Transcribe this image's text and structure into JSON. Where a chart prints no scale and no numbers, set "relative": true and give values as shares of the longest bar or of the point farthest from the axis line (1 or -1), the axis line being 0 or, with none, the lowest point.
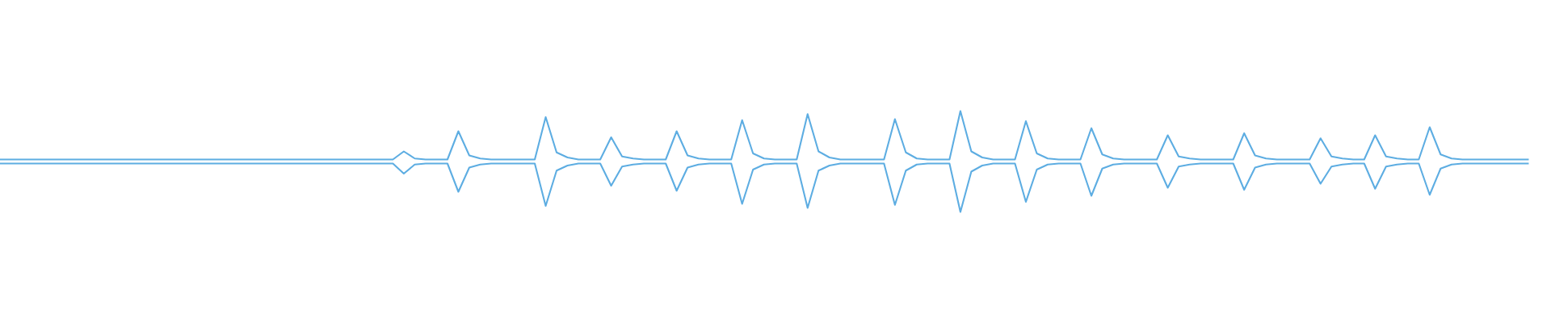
{
  "chart_data": {
    "type": "line",
    "relative": true,
    "categories": [
      null,
      null,
      null,
      null,
      null,
      null,
      null,
      null,
      null,
      null,
      null,
      null,
      null,
      null,
      null,
      null,
      null,
      null,
      null,
      null,
      null,
      null,
      null,
      null,
      null,
      null,
      null,
      null,
      null,
      null,
      null,
      null,
      null,
      null,
      null,
      null,
      null,
      null,
      null,
      null,
      null,
      null,
      null,
      null,
      null,
      null,
      null,
      null,
      null,
      null,
      null,
      null,
      null,
      null,
      null,
      null,
      null,
      null,
      null,
      null,
      null,
      null,
      null,
      null,
      null,
      null,
      null,
      null,
      null,
      null,
      null,
      null,
      null,
      null,
      null,
      null,
      null,
      null,
      null,
      null,
      null,
      null,
      null,
      null,
      null,
      null,
      null,
      null,
      null,
      null,
      null,
      null,
      null,
      null,
      null,
      null,
      null,
      null,
      null,
      null,
      null,
      null,
      null,
      null,
      null,
      null,
      null,
      null,
      null,
      null,
      null,
      null,
      null,
      null,
      null,
      null,
      null,
      null,
      null,
      null,
      null,
      null,
      null,
      null,
      null,
      null,
      null,
      null,
      null,
      null,
      null,
      null,
      null,
      null,
      null,
      null,
      null,
      null,
      null,
      null,
      null
    ],
    "series": [
      {
        "color": "#5dade2",
        "values": [
          0.52,
          0.52,
          0.52,
          0.52,
          0.52,
          0.52,
          0.52,
          0.52,
          0.52,
          0.52,
          0.52,
          0.52,
          0.52,
          0.52,
          0.52,
          0.52,
          0.52,
          0.52,
          0.52,
          0.52,
          0.52,
          0.52,
          0.52,
          0.52,
          0.52,
          0.52,
          0.52,
          0.52,
          0.52,
          0.52,
          0.52,
          0.52,
          0.52,
          0.52,
          0.52,
          0.52,
          0.52,
          0.6,
          0.53,
          0.52,
          0.52,
          0.52,
          0.8,
          0.56,
          0.53,
          0.52,
          0.52,
          0.52,
          0.52,
          0.52,
          0.94,
          0.59,
          0.54,
          0.52,
          0.52,
          0.52,
          0.74,
          0.55,
          0.53,
          0.52,
          0.52,
          0.52,
          0.8,
          0.56,
          0.53,
          0.52,
          0.52,
          0.52,
          0.91,
          0.58,
          0.53,
          0.52,
          0.52,
          0.52,
          0.97,
          0.6,
          0.54,
          0.52,
          0.52,
          0.52,
          0.52,
          0.52,
          0.92,
          0.59,
          0.53,
          0.52,
          0.52,
          0.52,
          1,
          0.6,
          0.54,
          0.52,
          0.52,
          0.52,
          0.9,
          0.58,
          0.53,
          0.52,
          0.52,
          0.52,
          0.83,
          0.57,
          0.53,
          0.52,
          0.52,
          0.52,
          0.52,
          0.76,
          0.55,
          0.53,
          0.52,
          0.52,
          0.52,
          0.52,
          0.78,
          0.56,
          0.53,
          0.52,
          0.52,
          0.52,
          0.52,
          0.73,
          0.55,
          0.53,
          0.52,
          0.52,
          0.76,
          0.55,
          0.53,
          0.52,
          0.52,
          0.84,
          0.57,
          0.53,
          0.52,
          0.52,
          0.52,
          0.52,
          0.52,
          0.52,
          0.52
        ]
      },
      {
        "color": "#5dade2",
        "values": [
          0.48,
          0.48,
          0.48,
          0.48,
          0.48,
          0.48,
          0.48,
          0.48,
          0.48,
          0.48,
          0.48,
          0.48,
          0.48,
          0.48,
          0.48,
          0.48,
          0.48,
          0.48,
          0.48,
          0.48,
          0.48,
          0.48,
          0.48,
          0.48,
          0.48,
          0.48,
          0.48,
          0.48,
          0.48,
          0.48,
          0.48,
          0.48,
          0.48,
          0.48,
          0.48,
          0.48,
          0.48,
          0.38,
          0.47,
          0.48,
          0.48,
          0.48,
          0.2,
          0.44,
          0.47,
          0.48,
          0.48,
          0.48,
          0.48,
          0.48,
          0.06,
          0.41,
          0.46,
          0.48,
          0.48,
          0.48,
          0.26,
          0.45,
          0.47,
          0.48,
          0.48,
          0.48,
          0.21,
          0.44,
          0.47,
          0.48,
          0.48,
          0.48,
          0.08,
          0.42,
          0.47,
          0.48,
          0.48,
          0.48,
          0.04,
          0.41,
          0.46,
          0.48,
          0.48,
          0.48,
          0.48,
          0.48,
          0.07,
          0.41,
          0.47,
          0.48,
          0.48,
          0.48,
          0,
          0.4,
          0.46,
          0.48,
          0.48,
          0.48,
          0.1,
          0.42,
          0.47,
          0.48,
          0.48,
          0.48,
          0.16,
          0.43,
          0.47,
          0.48,
          0.48,
          0.48,
          0.48,
          0.24,
          0.45,
          0.47,
          0.48,
          0.48,
          0.48,
          0.48,
          0.22,
          0.44,
          0.47,
          0.48,
          0.48,
          0.48,
          0.48,
          0.28,
          0.45,
          0.47,
          0.48,
          0.48,
          0.23,
          0.45,
          0.47,
          0.48,
          0.48,
          0.17,
          0.43,
          0.47,
          0.48,
          0.48,
          0.48,
          0.48,
          0.48,
          0.48,
          0.48
        ]
      }
    ]
  }
}
